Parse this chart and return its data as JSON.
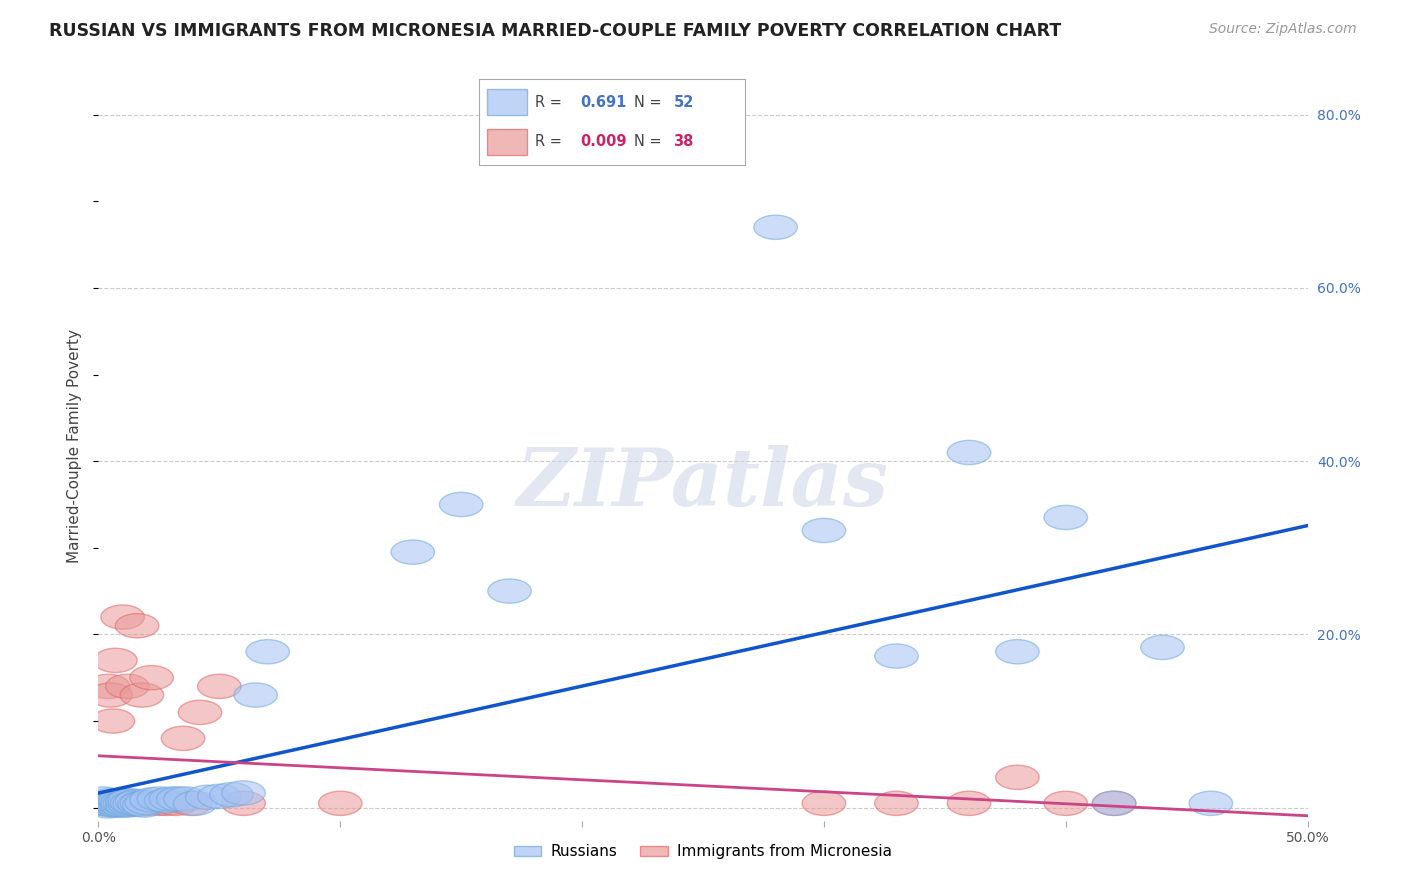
{
  "title": "RUSSIAN VS IMMIGRANTS FROM MICRONESIA MARRIED-COUPLE FAMILY POVERTY CORRELATION CHART",
  "source": "Source: ZipAtlas.com",
  "ylabel": "Married-Couple Family Poverty",
  "xlim": [
    0.0,
    0.5
  ],
  "ylim": [
    -0.015,
    0.85
  ],
  "legend_russian_R": "0.691",
  "legend_russian_N": "52",
  "legend_micronesia_R": "0.009",
  "legend_micronesia_N": "38",
  "russian_color": "#a4c2f4",
  "russian_edge_color": "#6fa8dc",
  "micronesia_color": "#ea9999",
  "micronesia_edge_color": "#e06666",
  "russian_line_color": "#1155cc",
  "micronesia_line_color": "#cc4488",
  "grid_color": "#cccccc",
  "background_color": "#ffffff",
  "russian_x": [
    0.002,
    0.003,
    0.004,
    0.005,
    0.005,
    0.006,
    0.006,
    0.007,
    0.007,
    0.008,
    0.008,
    0.009,
    0.009,
    0.01,
    0.01,
    0.011,
    0.012,
    0.012,
    0.013,
    0.013,
    0.014,
    0.015,
    0.016,
    0.017,
    0.018,
    0.019,
    0.02,
    0.022,
    0.025,
    0.028,
    0.03,
    0.033,
    0.036,
    0.04,
    0.045,
    0.05,
    0.055,
    0.06,
    0.065,
    0.07,
    0.13,
    0.15,
    0.17,
    0.28,
    0.3,
    0.33,
    0.36,
    0.38,
    0.4,
    0.42,
    0.44,
    0.46
  ],
  "russian_y": [
    0.01,
    0.005,
    0.002,
    0.004,
    0.008,
    0.003,
    0.006,
    0.004,
    0.007,
    0.003,
    0.006,
    0.004,
    0.008,
    0.003,
    0.006,
    0.005,
    0.003,
    0.007,
    0.004,
    0.008,
    0.005,
    0.005,
    0.007,
    0.004,
    0.005,
    0.003,
    0.006,
    0.009,
    0.01,
    0.008,
    0.01,
    0.01,
    0.01,
    0.005,
    0.012,
    0.013,
    0.015,
    0.017,
    0.13,
    0.18,
    0.295,
    0.35,
    0.25,
    0.67,
    0.32,
    0.175,
    0.41,
    0.18,
    0.335,
    0.005,
    0.185,
    0.005
  ],
  "micronesia_x": [
    0.002,
    0.003,
    0.004,
    0.005,
    0.005,
    0.006,
    0.006,
    0.007,
    0.007,
    0.008,
    0.009,
    0.01,
    0.011,
    0.012,
    0.013,
    0.014,
    0.015,
    0.016,
    0.017,
    0.018,
    0.019,
    0.02,
    0.022,
    0.025,
    0.028,
    0.032,
    0.035,
    0.038,
    0.042,
    0.05,
    0.06,
    0.1,
    0.3,
    0.33,
    0.36,
    0.38,
    0.4,
    0.42
  ],
  "micronesia_y": [
    0.005,
    0.005,
    0.14,
    0.005,
    0.13,
    0.005,
    0.1,
    0.005,
    0.17,
    0.005,
    0.005,
    0.22,
    0.005,
    0.14,
    0.005,
    0.005,
    0.005,
    0.21,
    0.005,
    0.13,
    0.005,
    0.005,
    0.15,
    0.005,
    0.005,
    0.005,
    0.08,
    0.005,
    0.11,
    0.14,
    0.005,
    0.005,
    0.005,
    0.005,
    0.005,
    0.035,
    0.005,
    0.005
  ]
}
